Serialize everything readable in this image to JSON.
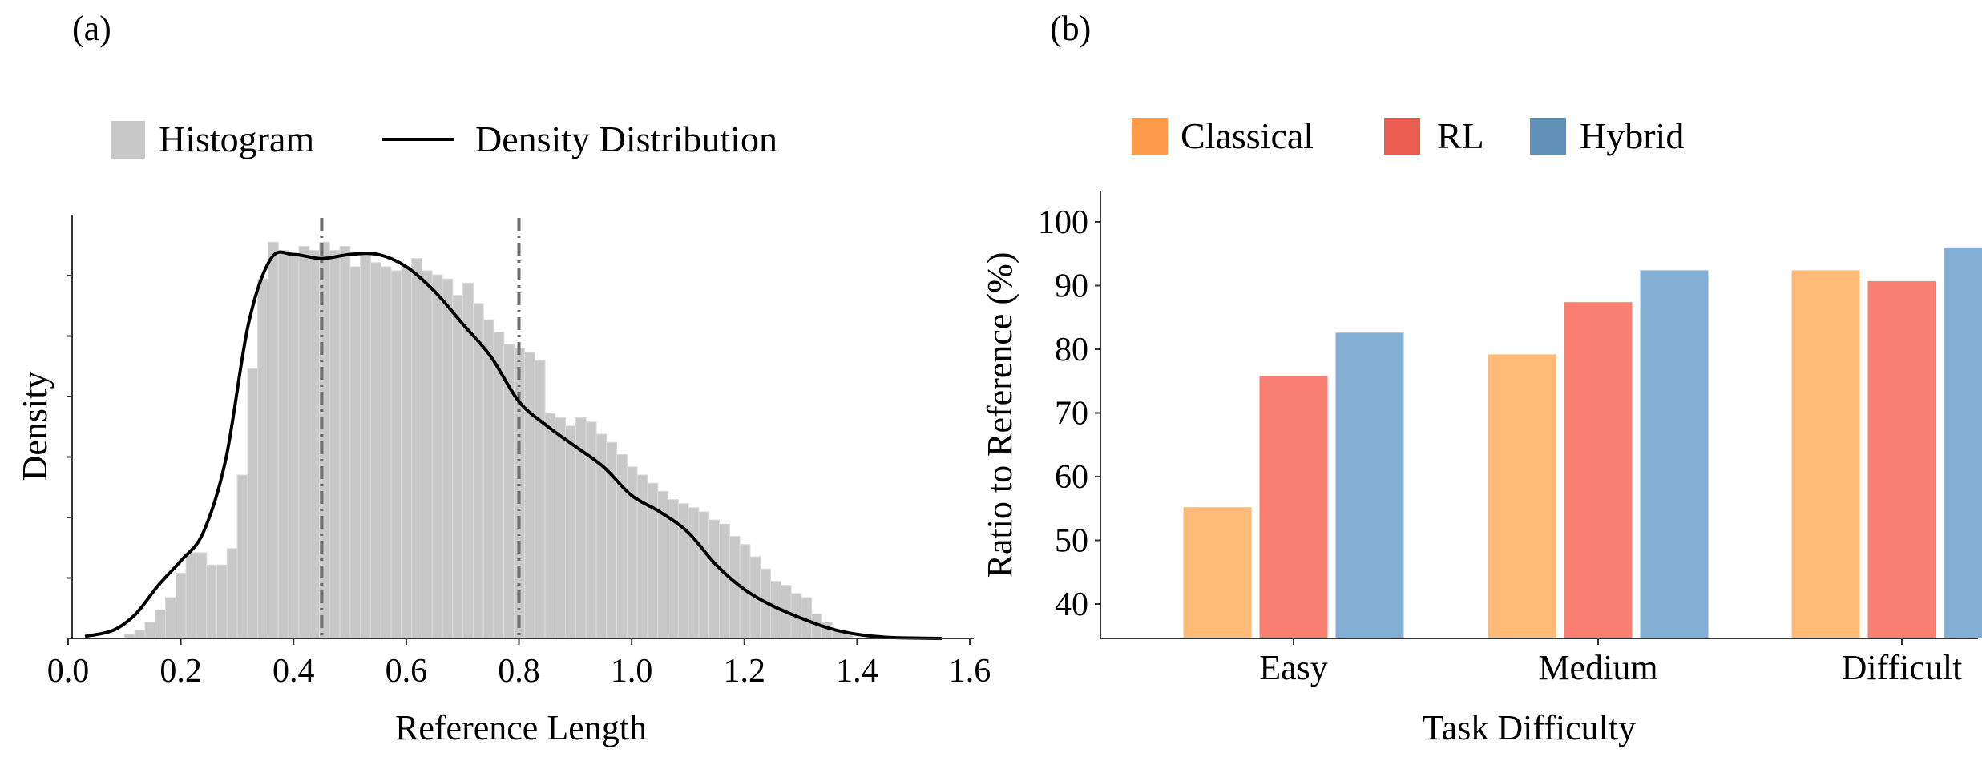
{
  "panel_a": {
    "label": "(a)"
  },
  "panel_b": {
    "label": "(b)"
  },
  "chart_data": [
    {
      "type": "histogram",
      "title": "",
      "xlabel": "Reference Length",
      "ylabel": "Density",
      "xlim": [
        0.0,
        1.6
      ],
      "xticks": [
        "0.0",
        "0.2",
        "0.4",
        "0.6",
        "0.8",
        "1.0",
        "1.2",
        "1.4",
        "1.6"
      ],
      "legend": {
        "placement": "top",
        "entries": [
          "Histogram",
          "Density Distribution"
        ]
      },
      "colors": {
        "histogram": "#c8c8c8",
        "density": "#000000",
        "reference_lines": "#6e6e6e"
      },
      "reference_lines_x": [
        0.45,
        0.8
      ],
      "histogram": {
        "bin_start": 0.1,
        "bin_width": 0.0182,
        "relative_heights": [
          0.01,
          0.02,
          0.04,
          0.07,
          0.1,
          0.16,
          0.21,
          0.21,
          0.18,
          0.18,
          0.22,
          0.4,
          0.66,
          0.88,
          0.97,
          0.95,
          0.94,
          0.96,
          0.95,
          0.97,
          0.95,
          0.96,
          0.91,
          0.94,
          0.92,
          0.91,
          0.9,
          0.91,
          0.93,
          0.9,
          0.89,
          0.88,
          0.84,
          0.87,
          0.82,
          0.78,
          0.75,
          0.72,
          0.71,
          0.7,
          0.68,
          0.55,
          0.54,
          0.52,
          0.54,
          0.53,
          0.5,
          0.48,
          0.45,
          0.42,
          0.4,
          0.38,
          0.36,
          0.34,
          0.33,
          0.32,
          0.31,
          0.29,
          0.28,
          0.25,
          0.23,
          0.2,
          0.17,
          0.14,
          0.13,
          0.11,
          0.1,
          0.06,
          0.04,
          0.02,
          0.01
        ]
      },
      "density_curve": {
        "x": [
          0.03,
          0.08,
          0.12,
          0.16,
          0.2,
          0.24,
          0.28,
          0.32,
          0.36,
          0.4,
          0.45,
          0.5,
          0.55,
          0.6,
          0.65,
          0.7,
          0.75,
          0.8,
          0.85,
          0.9,
          0.95,
          1.0,
          1.05,
          1.1,
          1.15,
          1.2,
          1.25,
          1.3,
          1.35,
          1.4,
          1.45,
          1.5,
          1.55
        ],
        "relative_y": [
          0.005,
          0.02,
          0.06,
          0.13,
          0.19,
          0.26,
          0.44,
          0.77,
          0.93,
          0.94,
          0.93,
          0.94,
          0.94,
          0.91,
          0.85,
          0.77,
          0.69,
          0.58,
          0.52,
          0.47,
          0.42,
          0.35,
          0.31,
          0.26,
          0.18,
          0.12,
          0.08,
          0.05,
          0.025,
          0.01,
          0.003,
          0.001,
          0.0
        ]
      }
    },
    {
      "type": "bar",
      "title": "",
      "xlabel": "Task Difficulty",
      "ylabel": "Ratio to Reference (%)",
      "ylim": [
        35,
        105
      ],
      "yticks": [
        "40",
        "50",
        "60",
        "70",
        "80",
        "90",
        "100"
      ],
      "categories": [
        "Easy",
        "Medium",
        "Difficult"
      ],
      "legend": {
        "placement": "top",
        "entries": [
          "Classical",
          "RL",
          "Hybrid"
        ]
      },
      "series": [
        {
          "name": "Classical",
          "color": "#fdbb77",
          "legend_color": "#fd9a4c",
          "values": [
            55.2,
            79.2,
            92.4
          ]
        },
        {
          "name": "RL",
          "color": "#f98070",
          "legend_color": "#ea5b50",
          "values": [
            75.8,
            87.4,
            90.7
          ]
        },
        {
          "name": "Hybrid",
          "color": "#82afd3",
          "legend_color": "#5f91b6",
          "values": [
            82.6,
            92.4,
            96.0
          ]
        }
      ]
    }
  ]
}
